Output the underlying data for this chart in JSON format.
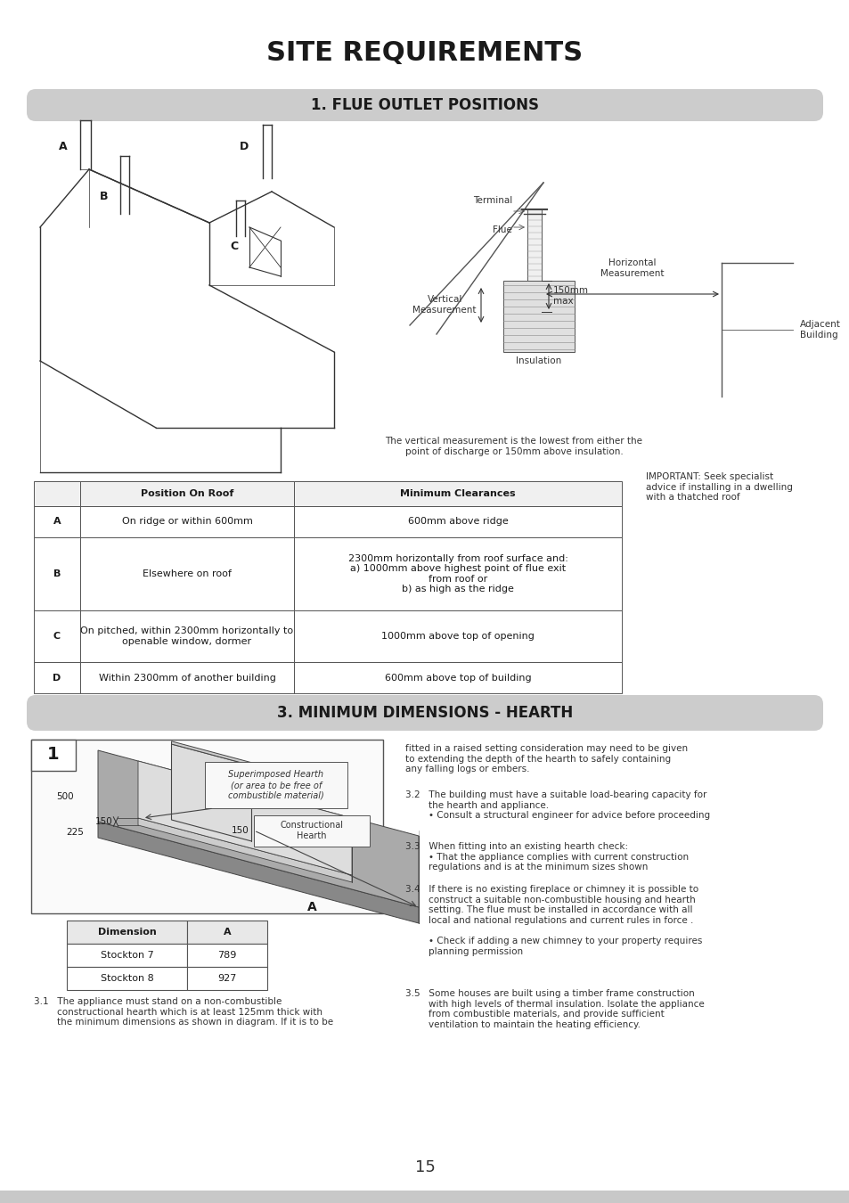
{
  "title": "SITE REQUIREMENTS",
  "section1_title": "1. FLUE OUTLET POSITIONS",
  "section3_title": "3. MINIMUM DIMENSIONS - HEARTH",
  "bg_color": "#ffffff",
  "section_bg": "#cccccc",
  "table_data": [
    [
      "",
      "Position On Roof",
      "Minimum Clearances"
    ],
    [
      "A",
      "On ridge or within 600mm",
      "600mm above ridge"
    ],
    [
      "B",
      "Elsewhere on roof",
      "2300mm horizontally from roof surface and:\na) 1000mm above highest point of flue exit\nfrom roof or\nb) as high as the ridge"
    ],
    [
      "C",
      "On pitched, within 2300mm horizontally to\nopenable window, dormer",
      "1000mm above top of opening"
    ],
    [
      "D",
      "Within 2300mm of another building",
      "600mm above top of building"
    ]
  ],
  "hearth_table_data": [
    [
      "Dimension",
      "A"
    ],
    [
      "Stockton 7",
      "789"
    ],
    [
      "Stockton 8",
      "927"
    ]
  ],
  "note_text": "The vertical measurement is the lowest from either the\npoint of discharge or 150mm above insulation.",
  "important_text": "IMPORTANT: Seek specialist\nadvice if installing in a dwelling\nwith a thatched roof",
  "text_31": "3.1   The appliance must stand on a non-combustible\n        constructional hearth which is at least 125mm thick with\n        the minimum dimensions as shown in diagram. If it is to be",
  "text_32": "3.2   The building must have a suitable load-bearing capacity for\n        the hearth and appliance.\n        • Consult a structural engineer for advice before proceeding",
  "text_33": "3.3   When fitting into an existing hearth check:\n        • That the appliance complies with current construction\n        regulations and is at the minimum sizes shown",
  "text_34": "3.4   If there is no existing fireplace or chimney it is possible to\n        construct a suitable non-combustible housing and hearth\n        setting. The flue must be installed in accordance with all\n        local and national regulations and current rules in force .\n\n        • Check if adding a new chimney to your property requires\n        planning permission",
  "text_35": "3.5   Some houses are built using a timber frame construction\n        with high levels of thermal insulation. Isolate the appliance\n        from combustible materials, and provide sufficient\n        ventilation to maintain the heating efficiency.",
  "raised_text": "fitted in a raised setting consideration may need to be given\nto extending the depth of the hearth to safely containing\nany falling logs or embers.",
  "page_number": "15"
}
